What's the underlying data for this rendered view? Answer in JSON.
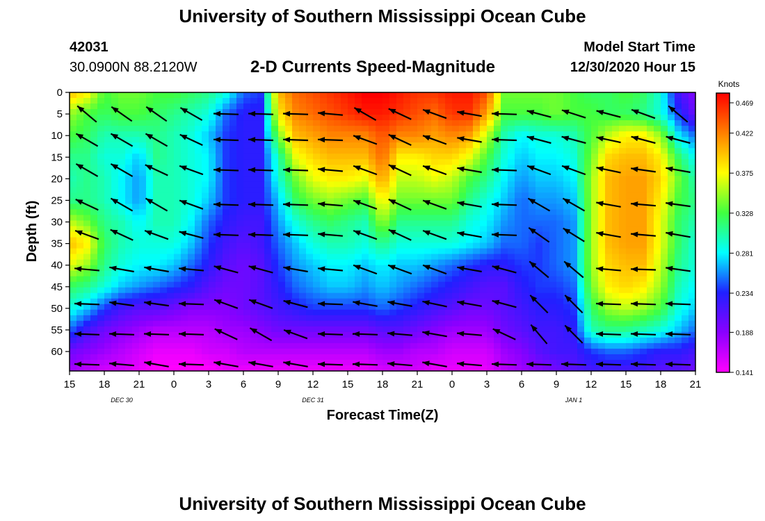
{
  "header": {
    "title": "University of Southern Mississippi Ocean Cube",
    "station_id": "42031",
    "station_coords": "30.0900N 88.2120W",
    "product_title": "2-D Currents Speed-Magnitude",
    "model_start_label": "Model Start Time",
    "model_start_value": "12/30/2020 Hour 15"
  },
  "footer": {
    "title": "University of Southern Mississippi Ocean Cube"
  },
  "colors": {
    "scale": [
      "#ff00ff",
      "#8a00ff",
      "#2020ff",
      "#00ffff",
      "#40ff40",
      "#ffff00",
      "#ff8000",
      "#ff0000"
    ]
  },
  "chart_data": {
    "type": "heatmap",
    "title": "2-D Currents Speed-Magnitude",
    "xlabel": "Forecast Time(Z)",
    "ylabel": "Depth (ft)",
    "x_tick_labels": [
      "15",
      "18",
      "21",
      "0",
      "3",
      "6",
      "9",
      "12",
      "15",
      "18",
      "21",
      "0",
      "3",
      "6",
      "9",
      "12",
      "15",
      "18",
      "21"
    ],
    "x_hours_range": [
      0,
      54
    ],
    "date_labels": [
      {
        "label": "DEC 30",
        "hour": 4.5
      },
      {
        "label": "DEC 31",
        "hour": 21
      },
      {
        "label": "JAN 1",
        "hour": 43.5
      }
    ],
    "y_ticks": [
      0,
      5,
      10,
      15,
      20,
      25,
      30,
      35,
      40,
      45,
      50,
      55,
      60
    ],
    "ylim": [
      0,
      64.5
    ],
    "colorbar": {
      "title": "Knots",
      "ticks": [
        "0.469",
        "0.422",
        "0.375",
        "0.328",
        "0.281",
        "0.234",
        "0.188",
        "0.141"
      ],
      "min": 0.141,
      "max": 0.469
    },
    "speed_grid": {
      "hours": [
        0,
        1.5,
        3,
        4.5,
        6,
        7.5,
        9,
        10.5,
        12,
        13.5,
        15,
        16.5,
        18,
        19.5,
        21,
        22.5,
        24,
        25.5,
        27,
        28.5,
        30,
        31.5,
        33,
        34.5,
        36,
        37.5,
        39,
        40.5,
        42,
        43.5,
        45,
        46.5,
        48,
        49.5,
        51,
        52.5,
        54
      ],
      "depths_ft": [
        0,
        5,
        10,
        15,
        20,
        25,
        30,
        35,
        40,
        45,
        50,
        55,
        60,
        64
      ],
      "values_knots": [
        [
          0.4,
          0.38,
          0.33,
          0.34,
          0.34,
          0.33,
          0.33,
          0.32,
          0.31,
          0.29,
          0.25,
          0.24,
          0.4,
          0.43,
          0.44,
          0.45,
          0.46,
          0.47,
          0.47,
          0.46,
          0.45,
          0.45,
          0.46,
          0.46,
          0.44,
          0.34,
          0.34,
          0.34,
          0.34,
          0.33,
          0.32,
          0.32,
          0.33,
          0.32,
          0.29,
          0.22,
          0.19
        ],
        [
          0.35,
          0.33,
          0.32,
          0.33,
          0.33,
          0.32,
          0.31,
          0.3,
          0.29,
          0.25,
          0.23,
          0.23,
          0.38,
          0.42,
          0.43,
          0.44,
          0.45,
          0.46,
          0.46,
          0.45,
          0.44,
          0.43,
          0.45,
          0.45,
          0.41,
          0.33,
          0.33,
          0.33,
          0.34,
          0.33,
          0.33,
          0.32,
          0.32,
          0.31,
          0.29,
          0.24,
          0.2
        ],
        [
          0.33,
          0.32,
          0.3,
          0.3,
          0.3,
          0.31,
          0.3,
          0.29,
          0.27,
          0.24,
          0.23,
          0.23,
          0.34,
          0.4,
          0.41,
          0.42,
          0.42,
          0.42,
          0.44,
          0.42,
          0.42,
          0.41,
          0.42,
          0.41,
          0.36,
          0.3,
          0.28,
          0.29,
          0.29,
          0.3,
          0.33,
          0.36,
          0.38,
          0.38,
          0.35,
          0.28,
          0.25
        ],
        [
          0.31,
          0.31,
          0.29,
          0.29,
          0.27,
          0.31,
          0.3,
          0.29,
          0.28,
          0.24,
          0.23,
          0.23,
          0.3,
          0.37,
          0.39,
          0.4,
          0.4,
          0.4,
          0.43,
          0.38,
          0.38,
          0.39,
          0.39,
          0.37,
          0.33,
          0.29,
          0.27,
          0.28,
          0.28,
          0.29,
          0.34,
          0.39,
          0.4,
          0.4,
          0.38,
          0.32,
          0.28
        ],
        [
          0.3,
          0.31,
          0.3,
          0.28,
          0.26,
          0.3,
          0.3,
          0.29,
          0.28,
          0.24,
          0.23,
          0.23,
          0.29,
          0.34,
          0.37,
          0.38,
          0.38,
          0.37,
          0.41,
          0.36,
          0.36,
          0.37,
          0.36,
          0.33,
          0.31,
          0.28,
          0.26,
          0.27,
          0.27,
          0.28,
          0.35,
          0.4,
          0.41,
          0.41,
          0.39,
          0.34,
          0.3
        ],
        [
          0.31,
          0.31,
          0.3,
          0.28,
          0.26,
          0.3,
          0.3,
          0.29,
          0.27,
          0.24,
          0.23,
          0.23,
          0.27,
          0.32,
          0.34,
          0.35,
          0.34,
          0.33,
          0.38,
          0.34,
          0.34,
          0.34,
          0.34,
          0.31,
          0.29,
          0.27,
          0.25,
          0.26,
          0.26,
          0.27,
          0.35,
          0.4,
          0.41,
          0.41,
          0.38,
          0.33,
          0.31
        ],
        [
          0.36,
          0.34,
          0.31,
          0.3,
          0.28,
          0.3,
          0.3,
          0.28,
          0.25,
          0.23,
          0.22,
          0.22,
          0.26,
          0.29,
          0.31,
          0.32,
          0.31,
          0.3,
          0.35,
          0.31,
          0.31,
          0.31,
          0.31,
          0.29,
          0.28,
          0.26,
          0.25,
          0.25,
          0.25,
          0.26,
          0.35,
          0.4,
          0.41,
          0.41,
          0.37,
          0.32,
          0.3
        ],
        [
          0.4,
          0.38,
          0.32,
          0.3,
          0.29,
          0.29,
          0.29,
          0.27,
          0.24,
          0.22,
          0.21,
          0.22,
          0.25,
          0.27,
          0.29,
          0.3,
          0.3,
          0.29,
          0.31,
          0.29,
          0.29,
          0.29,
          0.29,
          0.28,
          0.27,
          0.25,
          0.25,
          0.24,
          0.25,
          0.26,
          0.35,
          0.4,
          0.41,
          0.41,
          0.37,
          0.32,
          0.29
        ],
        [
          0.37,
          0.35,
          0.31,
          0.29,
          0.28,
          0.28,
          0.27,
          0.25,
          0.23,
          0.21,
          0.2,
          0.21,
          0.24,
          0.26,
          0.27,
          0.28,
          0.28,
          0.27,
          0.28,
          0.27,
          0.27,
          0.26,
          0.25,
          0.24,
          0.23,
          0.23,
          0.24,
          0.24,
          0.25,
          0.26,
          0.35,
          0.39,
          0.4,
          0.4,
          0.36,
          0.31,
          0.29
        ],
        [
          0.32,
          0.31,
          0.29,
          0.27,
          0.26,
          0.25,
          0.24,
          0.23,
          0.21,
          0.2,
          0.2,
          0.21,
          0.23,
          0.25,
          0.26,
          0.27,
          0.27,
          0.26,
          0.27,
          0.26,
          0.25,
          0.24,
          0.23,
          0.22,
          0.21,
          0.21,
          0.23,
          0.24,
          0.24,
          0.25,
          0.34,
          0.38,
          0.39,
          0.38,
          0.35,
          0.3,
          0.28
        ],
        [
          0.29,
          0.27,
          0.24,
          0.22,
          0.21,
          0.21,
          0.2,
          0.19,
          0.19,
          0.19,
          0.2,
          0.21,
          0.22,
          0.23,
          0.24,
          0.24,
          0.24,
          0.24,
          0.25,
          0.24,
          0.23,
          0.22,
          0.21,
          0.2,
          0.2,
          0.21,
          0.22,
          0.23,
          0.23,
          0.24,
          0.32,
          0.35,
          0.36,
          0.35,
          0.33,
          0.29,
          0.27
        ],
        [
          0.25,
          0.22,
          0.2,
          0.19,
          0.18,
          0.17,
          0.17,
          0.17,
          0.17,
          0.18,
          0.18,
          0.19,
          0.2,
          0.2,
          0.2,
          0.2,
          0.2,
          0.2,
          0.21,
          0.21,
          0.2,
          0.19,
          0.18,
          0.18,
          0.18,
          0.2,
          0.21,
          0.22,
          0.22,
          0.23,
          0.3,
          0.31,
          0.31,
          0.3,
          0.29,
          0.27,
          0.25
        ],
        [
          0.2,
          0.19,
          0.18,
          0.17,
          0.16,
          0.15,
          0.15,
          0.15,
          0.16,
          0.16,
          0.17,
          0.17,
          0.17,
          0.17,
          0.17,
          0.17,
          0.17,
          0.17,
          0.18,
          0.18,
          0.17,
          0.17,
          0.16,
          0.16,
          0.16,
          0.18,
          0.19,
          0.21,
          0.22,
          0.22,
          0.24,
          0.25,
          0.25,
          0.24,
          0.23,
          0.23,
          0.22
        ],
        [
          0.18,
          0.17,
          0.16,
          0.16,
          0.15,
          0.14,
          0.14,
          0.14,
          0.14,
          0.15,
          0.15,
          0.15,
          0.15,
          0.15,
          0.15,
          0.15,
          0.15,
          0.15,
          0.16,
          0.16,
          0.16,
          0.15,
          0.15,
          0.15,
          0.15,
          0.17,
          0.18,
          0.19,
          0.2,
          0.21,
          0.22,
          0.22,
          0.22,
          0.22,
          0.21,
          0.21,
          0.2
        ]
      ]
    },
    "vectors": {
      "hours": [
        1.5,
        4.5,
        7.5,
        10.5,
        13.5,
        16.5,
        19.5,
        22.5,
        25.5,
        28.5,
        31.5,
        34.5,
        37.5,
        40.5,
        43.5,
        46.5,
        49.5,
        52.5
      ],
      "depths_ft": [
        5,
        11,
        18,
        26,
        33,
        41,
        49,
        56,
        63
      ],
      "angles_deg": [
        [
          140,
          145,
          145,
          150,
          178,
          178,
          178,
          175,
          150,
          155,
          160,
          170,
          178,
          165,
          162,
          165,
          160,
          140
        ],
        [
          150,
          150,
          150,
          155,
          178,
          178,
          178,
          178,
          160,
          155,
          160,
          170,
          178,
          165,
          165,
          168,
          165,
          165
        ],
        [
          150,
          150,
          155,
          160,
          178,
          178,
          178,
          175,
          160,
          155,
          160,
          170,
          178,
          160,
          160,
          168,
          172,
          170
        ],
        [
          155,
          150,
          150,
          160,
          178,
          178,
          178,
          175,
          160,
          155,
          160,
          170,
          178,
          150,
          150,
          170,
          175,
          172
        ],
        [
          160,
          155,
          160,
          165,
          178,
          178,
          178,
          175,
          160,
          155,
          160,
          170,
          178,
          145,
          148,
          170,
          175,
          170
        ],
        [
          175,
          170,
          170,
          175,
          165,
          165,
          170,
          175,
          160,
          160,
          160,
          170,
          165,
          140,
          140,
          175,
          178,
          172
        ],
        [
          178,
          172,
          172,
          178,
          160,
          160,
          165,
          178,
          170,
          170,
          168,
          170,
          165,
          135,
          135,
          178,
          178,
          178
        ],
        [
          178,
          178,
          178,
          178,
          155,
          150,
          160,
          178,
          178,
          175,
          170,
          175,
          155,
          130,
          135,
          178,
          178,
          178
        ],
        [
          178,
          175,
          170,
          178,
          170,
          170,
          170,
          178,
          178,
          175,
          170,
          175,
          178,
          178,
          178,
          178,
          178,
          178
        ]
      ]
    }
  }
}
